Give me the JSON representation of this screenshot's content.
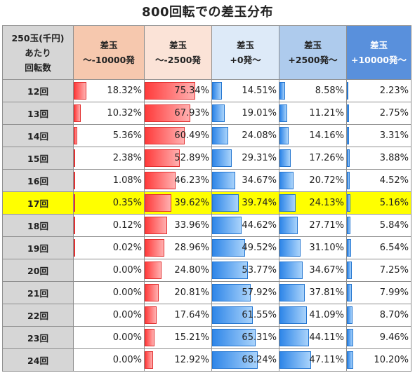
{
  "title": "800回転での差玉分布",
  "header": {
    "corner": [
      "250玉(千円)",
      "あたり",
      "回転数"
    ],
    "columns": [
      [
        "差玉",
        "～-10000発"
      ],
      [
        "差玉",
        "～-2500発"
      ],
      [
        "差玉",
        "+0発～"
      ],
      [
        "差玉",
        "+2500発～"
      ],
      [
        "差玉",
        "+10000発～"
      ]
    ]
  },
  "highlight_label": "17回",
  "colors": {
    "highlight": "#ffff00",
    "bar_red": "#ff3b3b",
    "bar_blue": "#2f86e8",
    "header_dark_blue": "#5990dc"
  },
  "chart_data": {
    "type": "table",
    "title": "800回転での差玉分布",
    "row_header": "250玉(千円)あたり回転数",
    "columns": [
      "差玉～-10000発",
      "差玉～-2500発",
      "差玉+0発～",
      "差玉+2500発～",
      "差玉+10000発～"
    ],
    "bar_colors": [
      "red",
      "red",
      "blue",
      "blue",
      "blue"
    ],
    "rows": [
      {
        "label": "12回",
        "values": [
          "18.32%",
          "75.34%",
          "14.51%",
          "8.58%",
          "2.23%"
        ]
      },
      {
        "label": "13回",
        "values": [
          "10.32%",
          "67.93%",
          "19.01%",
          "11.21%",
          "2.75%"
        ]
      },
      {
        "label": "14回",
        "values": [
          "5.36%",
          "60.49%",
          "24.08%",
          "14.16%",
          "3.31%"
        ]
      },
      {
        "label": "15回",
        "values": [
          "2.38%",
          "52.89%",
          "29.31%",
          "17.26%",
          "3.88%"
        ]
      },
      {
        "label": "16回",
        "values": [
          "1.08%",
          "46.23%",
          "34.67%",
          "20.72%",
          "4.52%"
        ]
      },
      {
        "label": "17回",
        "values": [
          "0.35%",
          "39.62%",
          "39.74%",
          "24.13%",
          "5.16%"
        ]
      },
      {
        "label": "18回",
        "values": [
          "0.12%",
          "33.96%",
          "44.62%",
          "27.71%",
          "5.84%"
        ]
      },
      {
        "label": "19回",
        "values": [
          "0.02%",
          "28.96%",
          "49.52%",
          "31.10%",
          "6.54%"
        ]
      },
      {
        "label": "20回",
        "values": [
          "0.00%",
          "24.80%",
          "53.77%",
          "34.67%",
          "7.25%"
        ]
      },
      {
        "label": "21回",
        "values": [
          "0.00%",
          "20.81%",
          "57.92%",
          "37.81%",
          "7.99%"
        ]
      },
      {
        "label": "22回",
        "values": [
          "0.00%",
          "17.64%",
          "61.55%",
          "41.09%",
          "8.70%"
        ]
      },
      {
        "label": "23回",
        "values": [
          "0.00%",
          "15.21%",
          "65.31%",
          "44.11%",
          "9.46%"
        ]
      },
      {
        "label": "24回",
        "values": [
          "0.00%",
          "12.92%",
          "68.24%",
          "47.11%",
          "10.20%"
        ]
      }
    ]
  }
}
